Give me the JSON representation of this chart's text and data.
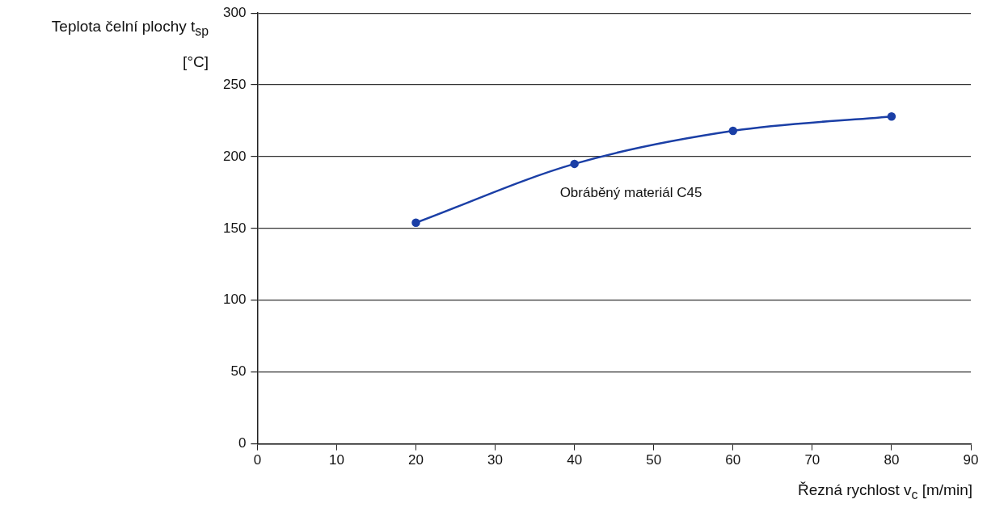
{
  "chart_data": {
    "type": "line",
    "xlabel": "Řezná rychlost v$_{c}$ [m/min]",
    "ylabel": "Teplota čelní plochy t$_{sp}$ [°C]",
    "x": [
      20,
      40,
      60,
      80
    ],
    "series": [
      {
        "name": "Obráběný materiál C45",
        "color": "#1b3fa6",
        "values": [
          154,
          195,
          218,
          228
        ]
      }
    ],
    "xlim": [
      0,
      90
    ],
    "xticks": [
      0,
      10,
      20,
      30,
      40,
      50,
      60,
      70,
      80,
      90
    ],
    "ylim": [
      0,
      300
    ],
    "yticks": [
      0,
      50,
      100,
      150,
      200,
      250,
      300
    ],
    "grid": "y",
    "legend": false,
    "marker": "circle",
    "line_style": "solid"
  }
}
